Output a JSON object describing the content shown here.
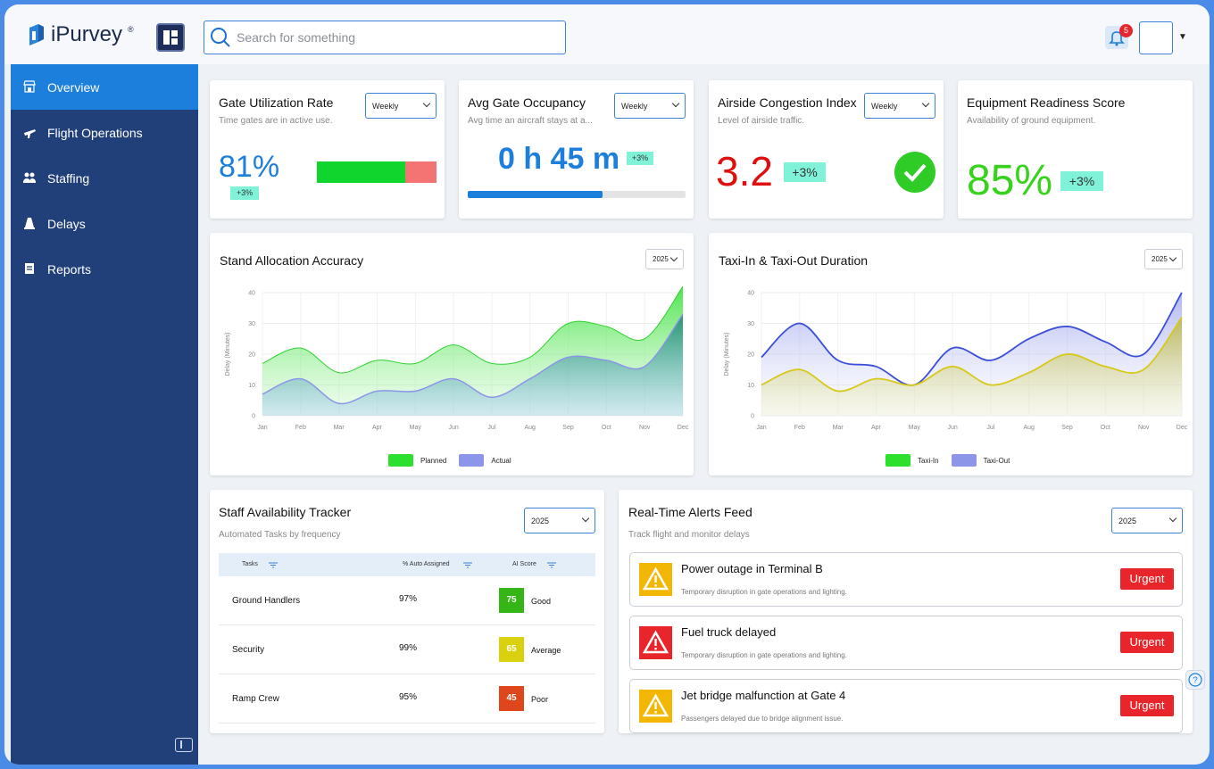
{
  "app": {
    "name": "iPurvey"
  },
  "search": {
    "placeholder": "Search for something"
  },
  "notifications": {
    "count": "5"
  },
  "sidebar": {
    "items": [
      {
        "label": "Overview",
        "icon": "store-icon",
        "active": true
      },
      {
        "label": "Flight Operations",
        "icon": "airplane-icon"
      },
      {
        "label": "Staffing",
        "icon": "people-icon"
      },
      {
        "label": "Delays",
        "icon": "cone-icon"
      },
      {
        "label": "Reports",
        "icon": "report-icon"
      }
    ]
  },
  "kpis": {
    "gate_util": {
      "title": "Gate Utilization Rate",
      "subtitle": "Time gates are in active use.",
      "value": "81%",
      "change": "+3%",
      "period": "Weekly",
      "bar_green_fraction": 0.74,
      "bar_red_fraction": 0.26
    },
    "occupancy": {
      "title": "Avg Gate Occupancy",
      "subtitle": "Avg time an aircraft stays at a...",
      "value": "0 h 45 m",
      "change": "+3%",
      "period": "Weekly",
      "progress_fraction": 0.62
    },
    "congestion": {
      "title": "Airside Congestion Index",
      "subtitle": "Level of airside traffic.",
      "value": "3.2",
      "change": "+3%",
      "period": "Weekly"
    },
    "equipment": {
      "title": "Equipment Readiness Score",
      "subtitle": "Availability of ground equipment.",
      "value": "85%",
      "change": "+3%"
    }
  },
  "stand_chart": {
    "title": "Stand Allocation Accuracy",
    "year": "2025",
    "chart_data": {
      "type": "area",
      "x": [
        "Jan",
        "Feb",
        "Mar",
        "Apr",
        "May",
        "Jun",
        "Jul",
        "Aug",
        "Sep",
        "Oct",
        "Nov",
        "Dec"
      ],
      "ylabel": "Delay (Minutes)",
      "ylim": [
        0,
        40
      ],
      "yticks": [
        0,
        10,
        20,
        30,
        40
      ],
      "series": [
        {
          "name": "Planned",
          "values": [
            17,
            22,
            14,
            18,
            17,
            23,
            17,
            19,
            30,
            29,
            25,
            42
          ],
          "color": "#2ee02e"
        },
        {
          "name": "Actual",
          "values": [
            7,
            12,
            4,
            8,
            8,
            12,
            6,
            12,
            19,
            18,
            16,
            33
          ],
          "color": "#8c95e8"
        }
      ]
    }
  },
  "taxi_chart": {
    "title": "Taxi-In & Taxi-Out Duration",
    "year": "2025",
    "chart_data": {
      "type": "area",
      "x": [
        "Jan",
        "Feb",
        "Mar",
        "Apr",
        "May",
        "Jun",
        "Jul",
        "Aug",
        "Sep",
        "Oct",
        "Nov",
        "Dec"
      ],
      "ylabel": "Delay (Minutes)",
      "ylim": [
        0,
        40
      ],
      "yticks": [
        0,
        10,
        20,
        30,
        40
      ],
      "series": [
        {
          "name": "Taxi-In",
          "values": [
            10,
            15,
            8,
            12,
            10,
            16,
            10,
            14,
            20,
            16,
            15,
            32
          ],
          "color": "#c8c41e"
        },
        {
          "name": "Taxi-Out",
          "values": [
            19,
            30,
            18,
            16,
            10,
            22,
            18,
            25,
            29,
            24,
            20,
            40
          ],
          "color": "#3b4fd8"
        }
      ]
    }
  },
  "staff": {
    "title": "Staff Availability Tracker",
    "subtitle": "Automated Tasks by frequency",
    "year": "2025",
    "headers": [
      "Tasks",
      "% Auto Assigned",
      "AI Score"
    ],
    "rows": [
      {
        "task": "Ground Handlers",
        "pct": "97%",
        "score": "75",
        "label": "Good",
        "color": "#36b516"
      },
      {
        "task": "Security",
        "pct": "99%",
        "score": "65",
        "label": "Average",
        "color": "#d9d10e"
      },
      {
        "task": "Ramp Crew",
        "pct": "95%",
        "score": "45",
        "label": "Poor",
        "color": "#e0461b"
      }
    ]
  },
  "alerts": {
    "title": "Real-Time Alerts Feed",
    "subtitle": "Track flight and monitor delays",
    "year": "2025",
    "items": [
      {
        "title": "Power outage in Terminal B",
        "desc": "Temporary disruption in gate operations and lighting.",
        "badge": "Urgent",
        "icon_color": "#f2b705"
      },
      {
        "title": "Fuel truck delayed",
        "desc": "Temporary disruption in gate operations and lighting.",
        "badge": "Urgent",
        "icon_color": "#e8252a"
      },
      {
        "title": "Jet bridge malfunction at Gate 4",
        "desc": "Passengers delayed due to bridge alignment issue.",
        "badge": "Urgent",
        "icon_color": "#f2b705"
      }
    ]
  }
}
